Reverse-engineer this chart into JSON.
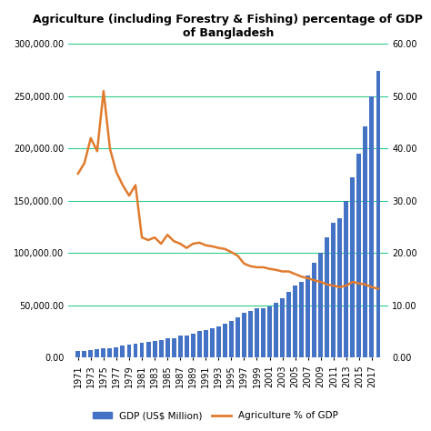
{
  "title": "Agriculture (including Forestry & Fishing) percentage of GDP\nof Bangladesh",
  "years": [
    1971,
    1972,
    1973,
    1974,
    1975,
    1976,
    1977,
    1978,
    1979,
    1980,
    1981,
    1982,
    1983,
    1984,
    1985,
    1986,
    1987,
    1988,
    1989,
    1990,
    1991,
    1992,
    1993,
    1994,
    1995,
    1996,
    1997,
    1998,
    1999,
    2000,
    2001,
    2002,
    2003,
    2004,
    2005,
    2006,
    2007,
    2008,
    2009,
    2010,
    2011,
    2012,
    2013,
    2014,
    2015,
    2016,
    2017,
    2018
  ],
  "gdp": [
    6283,
    6308,
    7416,
    8315,
    9175,
    9453,
    10248,
    11360,
    12199,
    13307,
    14175,
    14812,
    15854,
    17117,
    18584,
    18882,
    21142,
    21673,
    22778,
    25151,
    26756,
    28534,
    29620,
    32745,
    35418,
    38730,
    43133,
    44451,
    47104,
    47119,
    48817,
    52261,
    56819,
    62958,
    69443,
    72742,
    78985,
    90658,
    100032,
    115280,
    128638,
    133356,
    149990,
    172885,
    194710,
    221415,
    249724,
    274040
  ],
  "agri_pct": [
    35.2,
    37.2,
    42.0,
    39.5,
    51.0,
    40.0,
    35.5,
    33.0,
    31.0,
    33.0,
    23.0,
    22.5,
    23.0,
    21.8,
    23.5,
    22.3,
    21.8,
    21.0,
    21.8,
    22.0,
    21.5,
    21.3,
    21.0,
    20.8,
    20.2,
    19.5,
    18.0,
    17.5,
    17.3,
    17.3,
    17.0,
    16.8,
    16.5,
    16.5,
    16.0,
    15.5,
    15.2,
    14.8,
    14.5,
    14.0,
    13.8,
    13.5,
    13.8,
    14.5,
    14.2,
    14.0,
    13.5,
    13.2
  ],
  "bar_color": "#4472C4",
  "line_color": "#E07B2E",
  "grid_color": "#2ECC8A",
  "legend_bar_label": "GDP (US$ Million)",
  "legend_line_label": "Agriculture % of GDP",
  "left_ylim": [
    0,
    300000
  ],
  "right_ylim": [
    0,
    60
  ],
  "left_yticks": [
    0,
    50000,
    100000,
    150000,
    200000,
    250000,
    300000
  ],
  "right_yticks": [
    0,
    10,
    20,
    30,
    40,
    50,
    60
  ],
  "background_color": "#FFFFFF",
  "title_fontsize": 9,
  "tick_fontsize": 7,
  "legend_fontsize": 7.5
}
